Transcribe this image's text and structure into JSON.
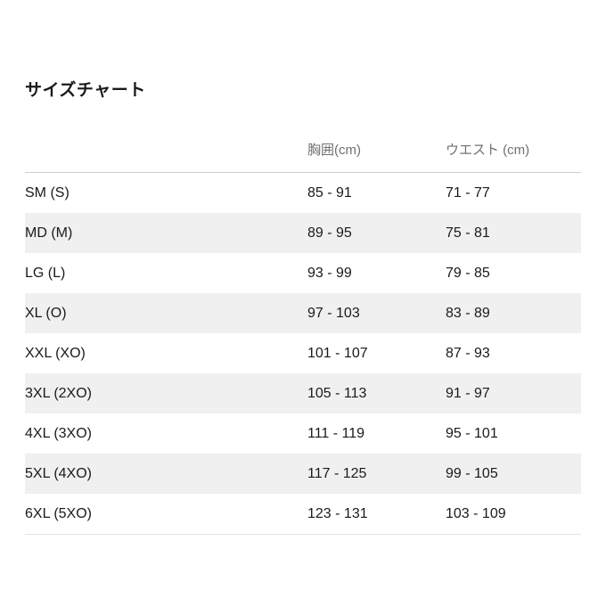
{
  "page": {
    "title": "サイズチャート"
  },
  "size_chart": {
    "columns": {
      "size_label": "",
      "chest_label": "胸囲(cm)",
      "waist_label": "ウエスト (cm)"
    },
    "rows": [
      {
        "size": "SM (S)",
        "chest": "85 - 91",
        "waist": "71 - 77"
      },
      {
        "size": "MD (M)",
        "chest": "89 - 95",
        "waist": "75 - 81"
      },
      {
        "size": "LG (L)",
        "chest": "93 - 99",
        "waist": "79 - 85"
      },
      {
        "size": "XL (O)",
        "chest": "97 - 103",
        "waist": "83 - 89"
      },
      {
        "size": "XXL (XO)",
        "chest": "101 - 107",
        "waist": "87 - 93"
      },
      {
        "size": "3XL (2XO)",
        "chest": "105 - 113",
        "waist": "91 - 97"
      },
      {
        "size": "4XL (3XO)",
        "chest": "111 - 119",
        "waist": "95 - 101"
      },
      {
        "size": "5XL (4XO)",
        "chest": "117 - 125",
        "waist": "99 - 105"
      },
      {
        "size": "6XL (5XO)",
        "chest": "123 - 131",
        "waist": "103 - 109"
      }
    ]
  },
  "colors": {
    "text_primary": "#1a1a1a",
    "text_header": "#707072",
    "row_stripe": "#f0f0f0",
    "header_border": "#cfcfcf",
    "bottom_border": "#e3e3e3",
    "background": "#ffffff"
  }
}
